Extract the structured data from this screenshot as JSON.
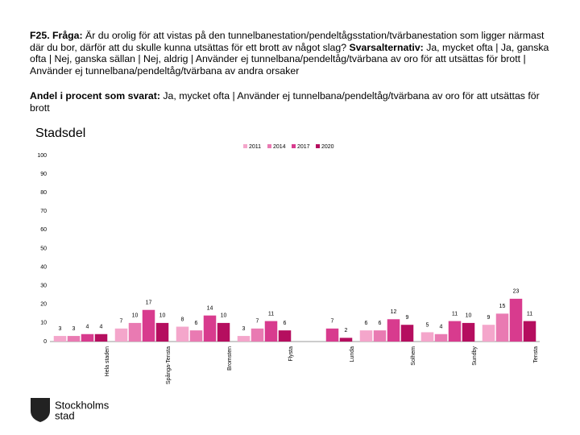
{
  "header": {
    "question_label": "F25. Fråga:",
    "question_text": "Är du orolig för att vistas på den tunnelbanestation/pendeltågsstation/tvärbanestation som ligger närmast där du bor, därför att du skulle kunna utsättas för ett brott av något slag?",
    "answer_label": "Svarsalternativ:",
    "answer_text": "Ja, mycket ofta | Ja, ganska ofta | Nej, ganska sällan | Nej, aldrig | Använder ej tunnelbana/pendeltåg/tvärbana av oro för att utsättas för brott | Använder ej tunnelbana/pendeltåg/tvärbana av andra orsaker",
    "share_label": "Andel i procent som svarat:",
    "share_text": "Ja, mycket ofta | Använder ej tunnelbana/pendeltåg/tvärbana av oro för att utsättas för brott"
  },
  "logo": {
    "line1": "Stockholms",
    "line2": "stad"
  },
  "chart_data": {
    "type": "bar",
    "title": "Stadsdel",
    "categories": [
      "Hela staden",
      "Spånga-Tensta",
      "Bromsten",
      "Flysta",
      "Lunda",
      "Solhem",
      "Sundby",
      "Tensta"
    ],
    "series": [
      {
        "name": "2011",
        "color": "#f4a6cb",
        "values": [
          3,
          7,
          8,
          3,
          null,
          6,
          5,
          9
        ]
      },
      {
        "name": "2014",
        "color": "#e97ab2",
        "values": [
          3,
          10,
          6,
          7,
          null,
          6,
          4,
          15
        ]
      },
      {
        "name": "2017",
        "color": "#d83b8e",
        "values": [
          4,
          17,
          14,
          11,
          7,
          12,
          11,
          23
        ]
      },
      {
        "name": "2020",
        "color": "#b50e5f",
        "values": [
          4,
          10,
          10,
          6,
          2,
          9,
          10,
          11
        ]
      }
    ],
    "ylim": [
      0,
      100
    ],
    "yticks": [
      0,
      10,
      20,
      30,
      40,
      50,
      60,
      70,
      80,
      90,
      100
    ],
    "grid": false,
    "legend": "top"
  }
}
